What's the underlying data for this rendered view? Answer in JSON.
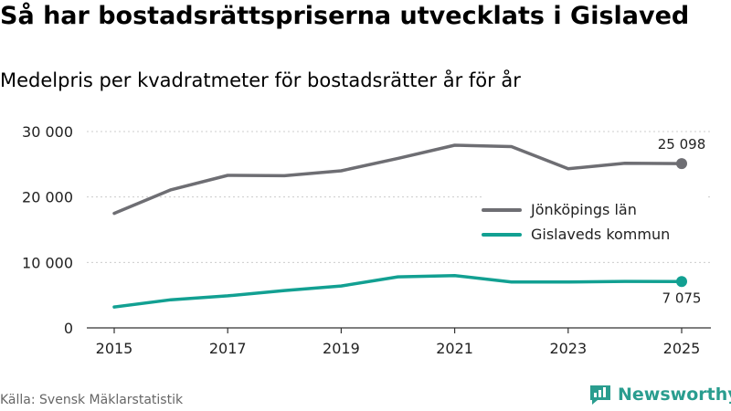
{
  "header": {
    "title": "Så har bostadsrättspriserna utvecklats i Gislaved",
    "subtitle": "Medelpris per kvadratmeter för bostadsrätter år för år"
  },
  "footer": {
    "source": "Källa: Svensk Mäklarstatistik",
    "brand": "Newsworthy"
  },
  "chart_data": {
    "type": "line",
    "x": [
      2015,
      2016,
      2017,
      2018,
      2019,
      2020,
      2021,
      2022,
      2023,
      2024,
      2025
    ],
    "xticks": [
      2015,
      2017,
      2019,
      2021,
      2023,
      2025
    ],
    "xtick_labels": [
      "2015",
      "2017",
      "2019",
      "2021",
      "2023",
      "2025"
    ],
    "yticks": [
      0,
      10000,
      20000,
      30000
    ],
    "ytick_labels": [
      "0",
      "10 000",
      "20 000",
      "30 000"
    ],
    "ylim": [
      0,
      30000
    ],
    "grid": true,
    "legend_position": "center-right",
    "series": [
      {
        "name": "Jönköpings län",
        "color": "#6e6e73",
        "values": [
          17500,
          21100,
          23300,
          23250,
          24000,
          25900,
          27900,
          27700,
          24300,
          25150,
          25098
        ],
        "end_label": "25 098"
      },
      {
        "name": "Gislaveds kommun",
        "color": "#12a092",
        "values": [
          3200,
          4300,
          4900,
          5700,
          6400,
          7800,
          8000,
          7000,
          7000,
          7100,
          7075
        ],
        "end_label": "7 075"
      }
    ]
  }
}
